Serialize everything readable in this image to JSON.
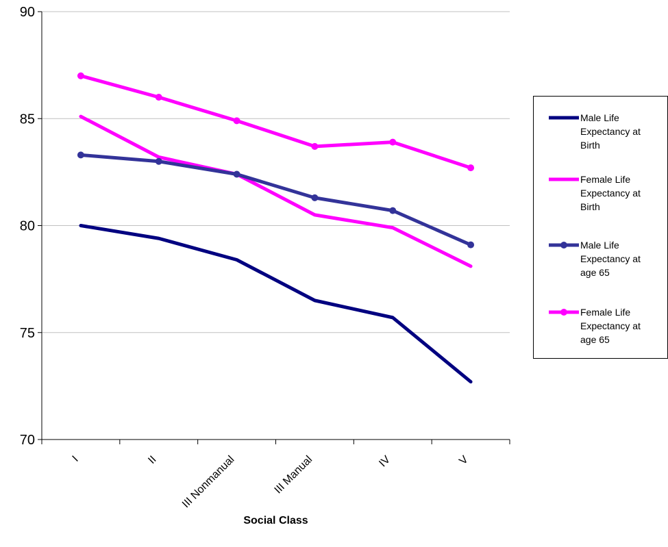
{
  "chart_data": {
    "type": "line",
    "title": "",
    "xlabel": "Social Class",
    "ylabel": "",
    "categories": [
      "I",
      "II",
      "III Nonmanual",
      "III Manual",
      "IV",
      "V"
    ],
    "ylim": [
      70,
      90
    ],
    "yticks": [
      70,
      75,
      80,
      85,
      90
    ],
    "grid": true,
    "legend_position": "right",
    "series": [
      {
        "name": "Male Life Expectancy at Birth",
        "legend_lines": [
          "Male Life",
          "Expectancy at",
          "Birth"
        ],
        "color": "#000080",
        "marker": false,
        "values": [
          80.0,
          79.4,
          78.4,
          76.5,
          75.7,
          72.7
        ]
      },
      {
        "name": "Female Life Expectancy at Birth",
        "legend_lines": [
          "Female Life",
          "Expectancy at",
          "Birth"
        ],
        "color": "#FF00FF",
        "marker": false,
        "values": [
          85.1,
          83.2,
          82.4,
          80.5,
          79.9,
          78.1
        ]
      },
      {
        "name": "Male Life Expectancy at age 65",
        "legend_lines": [
          "Male Life",
          "Expectancy at",
          "age 65"
        ],
        "color": "#333399",
        "marker": true,
        "values": [
          83.3,
          83.0,
          82.4,
          81.3,
          80.7,
          79.1
        ]
      },
      {
        "name": "Female Life Expectancy at age 65",
        "legend_lines": [
          "Female Life",
          "Expectancy at",
          "age 65"
        ],
        "color": "#FF00FF",
        "marker": true,
        "values": [
          87.0,
          86.0,
          84.9,
          83.7,
          83.9,
          82.7
        ]
      }
    ]
  }
}
